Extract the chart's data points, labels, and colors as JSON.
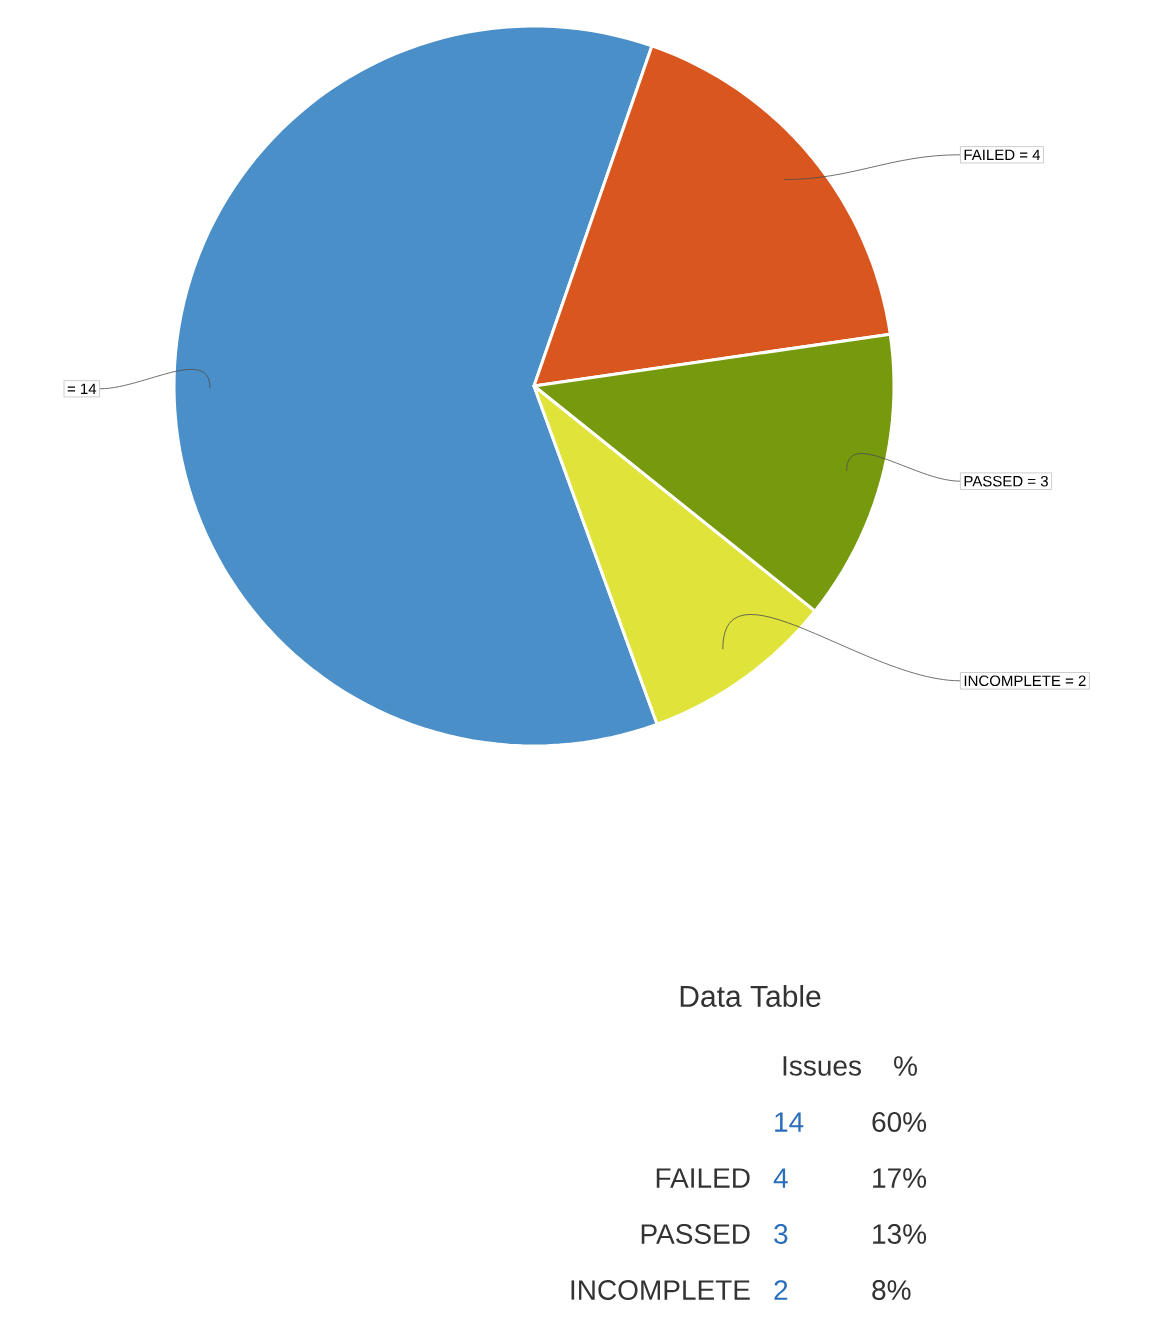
{
  "chart_data": {
    "type": "pie",
    "categories": [
      null,
      "FAILED",
      "PASSED",
      "INCOMPLETE"
    ],
    "values": [
      14,
      4,
      3,
      2
    ],
    "colors": [
      "#4a8fc8",
      "#d9561e",
      "#77990e",
      "#dfe33a"
    ],
    "value_labels": [
      "= 14",
      "= 4",
      "= 3",
      "= 2"
    ],
    "annotations": [
      "Data Table",
      "Issues",
      "%",
      "14",
      "60%",
      "4",
      "17%",
      "3",
      "13%",
      "2",
      "8%",
      "FAILED",
      "PASSED",
      "INCOMPLETE"
    ]
  }
}
